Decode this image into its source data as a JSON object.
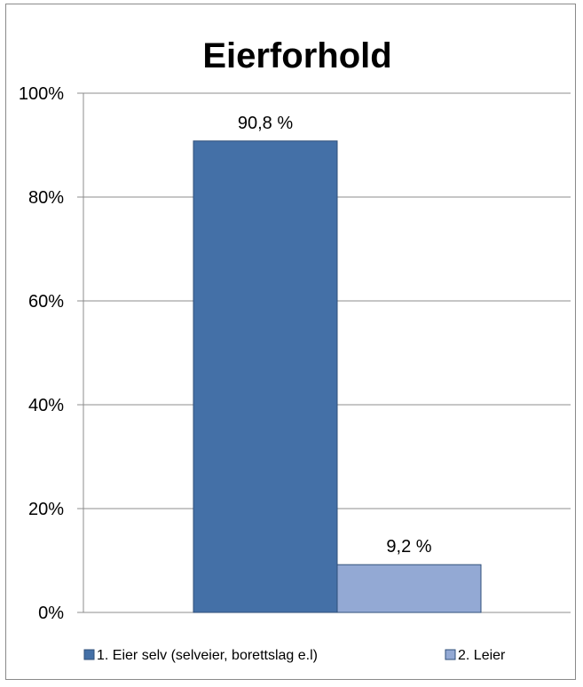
{
  "chart_data": {
    "type": "bar",
    "title": "Eierforhold",
    "xlabel": "",
    "ylabel": "",
    "ylim": [
      0,
      100
    ],
    "yticks": [
      "0%",
      "20%",
      "40%",
      "60%",
      "80%",
      "100%"
    ],
    "grid": true,
    "legend_position": "bottom",
    "series": [
      {
        "name": "1. Eier selv (selveier, borettslag e.l)",
        "values": [
          90.8
        ],
        "label": "90,8 %",
        "color": "#4470A7"
      },
      {
        "name": "2. Leier",
        "values": [
          9.2
        ],
        "label": "9,2 %",
        "color": "#93A9D4"
      }
    ]
  }
}
